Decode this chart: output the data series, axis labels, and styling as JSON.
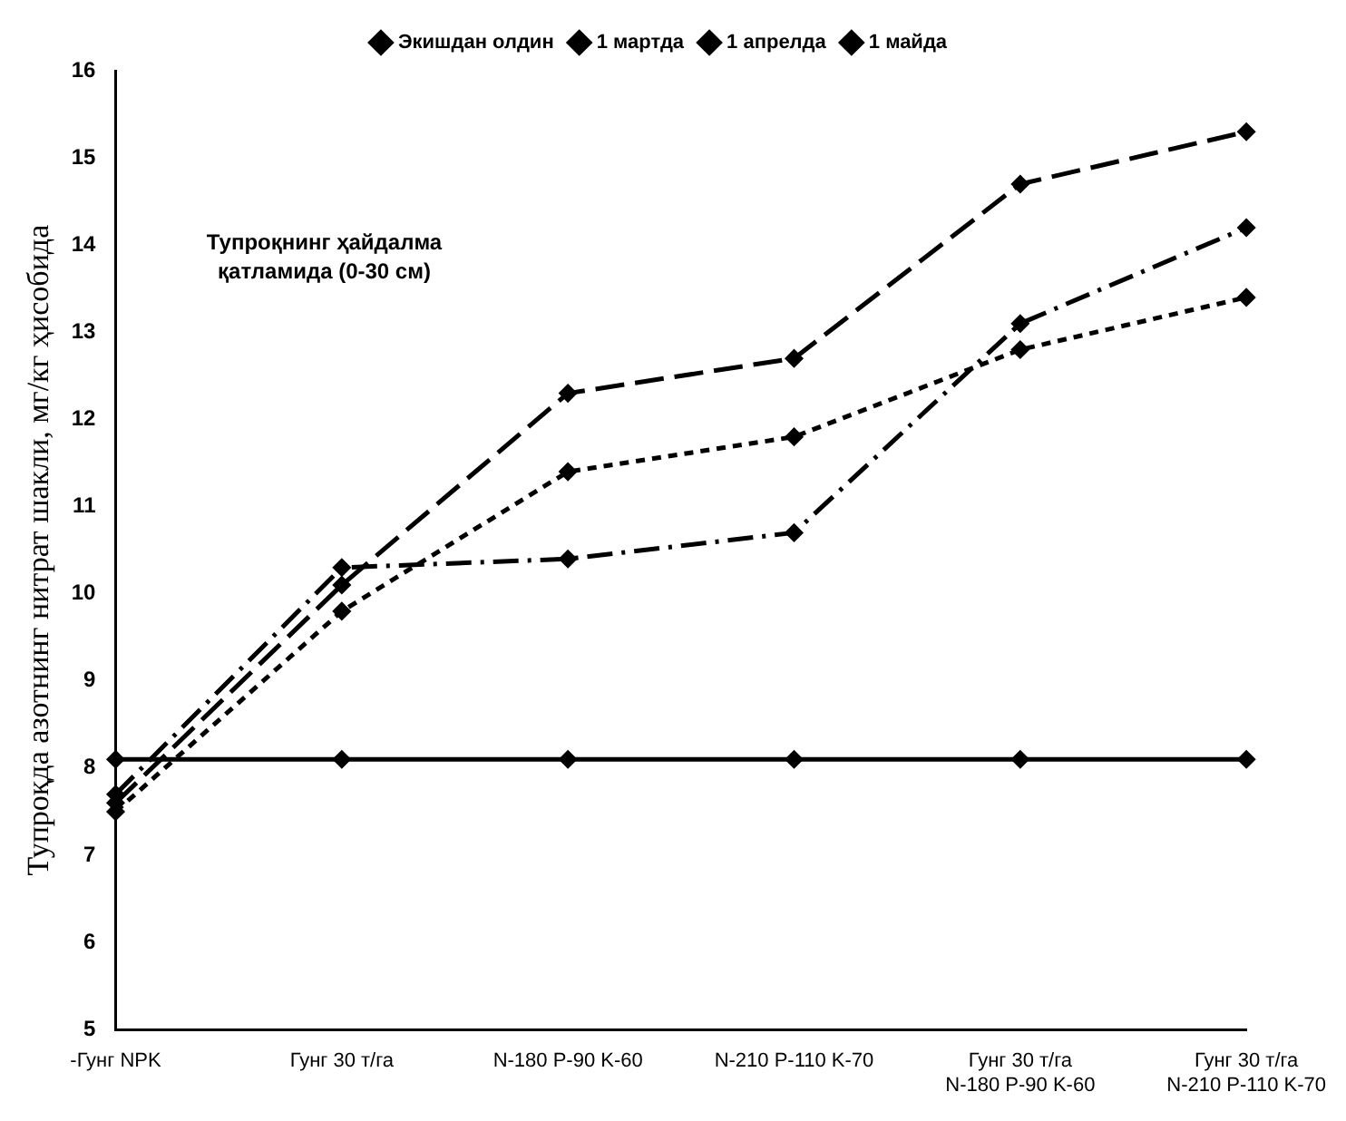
{
  "chart_data": {
    "type": "line",
    "ylabel": "Тупроқда азотнинг нитрат шакли, мг/кг ҳисобида",
    "categories": [
      "-Гунг NPK",
      "Гунг 30 т/га",
      "N-180 P-90 K-60",
      "N-210 P-110 K-70",
      "Гунг 30 т/га N-180 P-90 K-60",
      "Гунг 30 т/га N-210 P-110 K-70"
    ],
    "series": [
      {
        "name": "Экишдан олдин",
        "color": "#000000",
        "line_style": "solid",
        "values": [
          8.1,
          8.1,
          8.1,
          8.1,
          8.1,
          8.1
        ]
      },
      {
        "name": "1 мартда",
        "color": "#000000",
        "line_style": "dashed",
        "values": [
          7.7,
          10.3,
          10.4,
          10.7,
          13.1,
          14.2
        ]
      },
      {
        "name": "1 апрелда",
        "color": "#000000",
        "line_style": "dashed",
        "values": [
          7.6,
          10.1,
          12.3,
          12.7,
          14.7,
          15.3
        ]
      },
      {
        "name": "1 майда",
        "color": "#000000",
        "line_style": "dotted",
        "values": [
          7.5,
          9.8,
          11.4,
          11.8,
          12.8,
          13.4
        ]
      }
    ],
    "ylim": [
      5,
      16
    ],
    "yticks": [
      5,
      6,
      7,
      8,
      9,
      10,
      11,
      12,
      13,
      14,
      15,
      16
    ],
    "annotations": [
      "Тупроқнинг ҳайдалма қатламида (0-30 см)"
    ],
    "grid": false,
    "legend": "top",
    "marker": "diamond"
  }
}
